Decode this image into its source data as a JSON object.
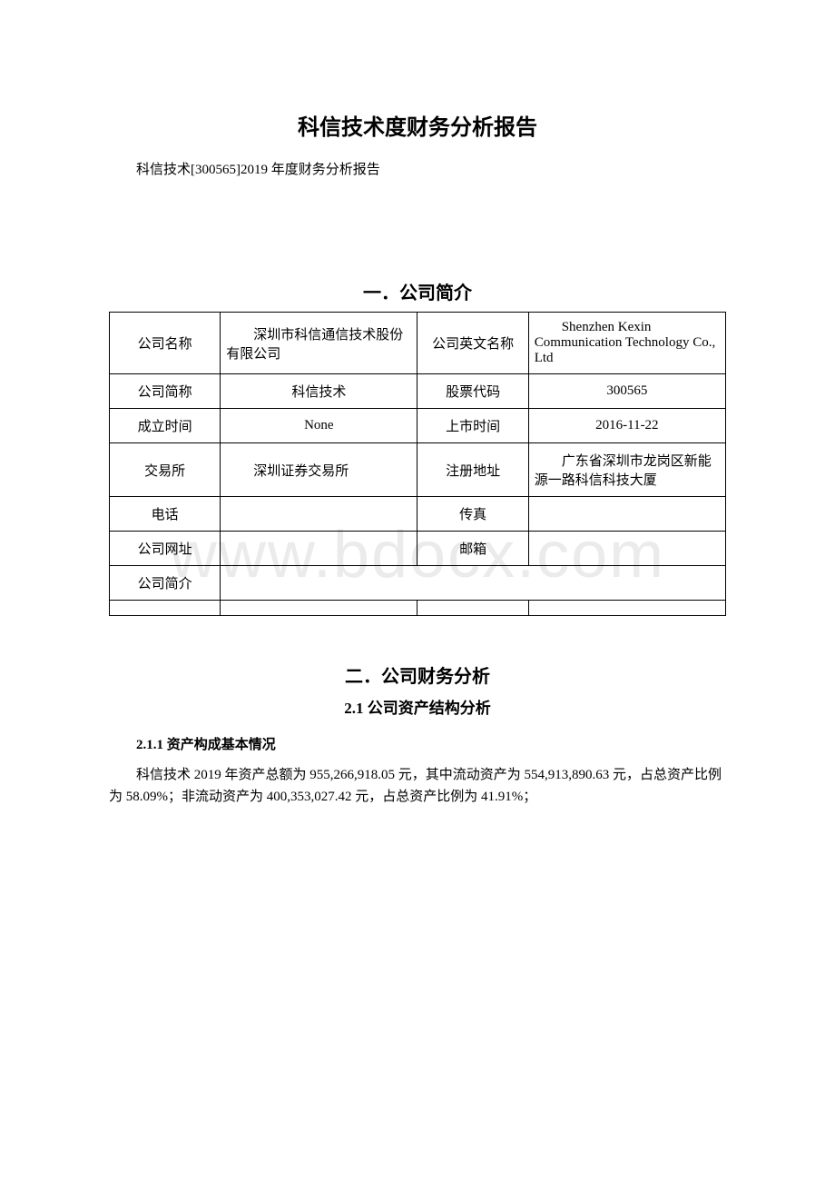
{
  "watermark_text": "www.bdocx.com",
  "main_title": "科信技术度财务分析报告",
  "subtitle": "科信技术[300565]2019 年度财务分析报告",
  "section1": {
    "title": "一．公司简介",
    "table": {
      "rows": [
        {
          "label1": "公司名称",
          "value1": "深圳市科信通信技术股份有限公司",
          "label2": "公司英文名称",
          "value2": "Shenzhen Kexin Communication Technology Co., Ltd"
        },
        {
          "label1": "公司简称",
          "value1": "科信技术",
          "label2": "股票代码",
          "value2": "300565"
        },
        {
          "label1": "成立时间",
          "value1": "None",
          "label2": "上市时间",
          "value2": "2016-11-22"
        },
        {
          "label1": "交易所",
          "value1": "深圳证券交易所",
          "label2": "注册地址",
          "value2": "广东省深圳市龙岗区新能源一路科信科技大厦"
        },
        {
          "label1": "电话",
          "value1": "",
          "label2": "传真",
          "value2": ""
        },
        {
          "label1": "公司网址",
          "value1": "",
          "label2": "邮箱",
          "value2": ""
        },
        {
          "label1": "公司简介",
          "value1": "",
          "label2": "",
          "value2": ""
        },
        {
          "label1": "",
          "value1": "",
          "label2": "",
          "value2": ""
        }
      ]
    }
  },
  "section2": {
    "title": "二．公司财务分析",
    "subsection21": {
      "title": "2.1 公司资产结构分析",
      "sub211": {
        "title": "2.1.1 资产构成基本情况",
        "paragraph": "科信技术 2019 年资产总额为 955,266,918.05 元，其中流动资产为 554,913,890.63 元，占总资产比例为 58.09%；非流动资产为 400,353,027.42 元，占总资产比例为 41.91%；"
      }
    }
  }
}
